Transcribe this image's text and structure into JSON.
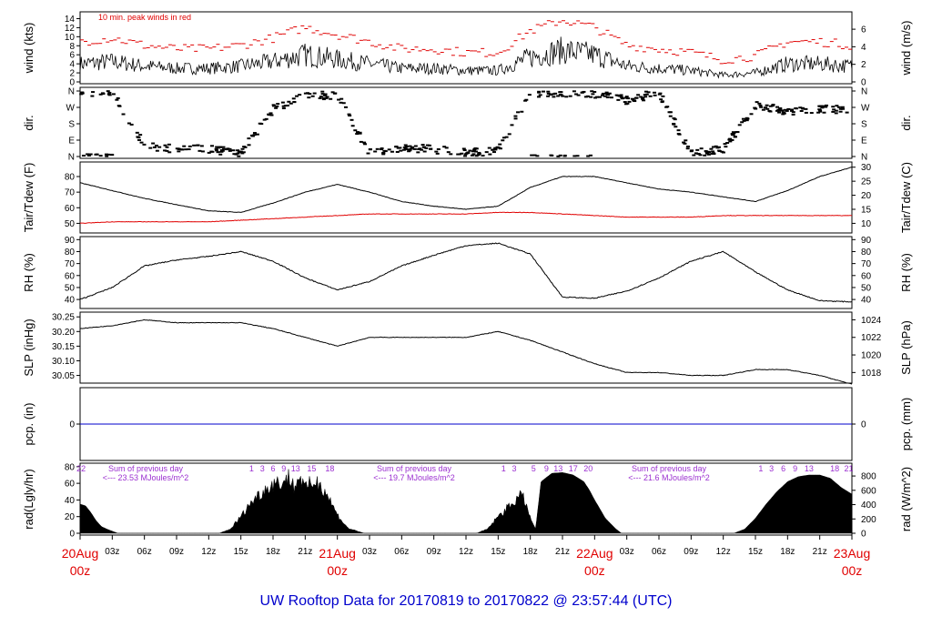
{
  "title": "UW Rooftop Data for 20170819  to  20170822 @ 23:57:44  (UTC)",
  "colors": {
    "trace": "#000000",
    "peak": "#e00000",
    "dew": "#e00000",
    "pcp": "#0000cc",
    "note": "#9b30d0",
    "day": "#e00000",
    "title": "#0000cc"
  },
  "x_axis": {
    "hour_ticks": [
      "03z",
      "06z",
      "09z",
      "12z",
      "15z",
      "18z",
      "21z",
      "03z",
      "06z",
      "09z",
      "12z",
      "15z",
      "18z",
      "21z",
      "03z",
      "06z",
      "09z",
      "12z",
      "15z",
      "18z",
      "21z"
    ],
    "day_labels": [
      {
        "date": "20Aug",
        "hour": "00z"
      },
      {
        "date": "21Aug",
        "hour": "00z"
      },
      {
        "date": "22Aug",
        "hour": "00z"
      },
      {
        "date": "23Aug",
        "hour": "00z"
      }
    ]
  },
  "chart_data": [
    {
      "id": "wind",
      "type": "line",
      "ylabel_left": "wind (kts)",
      "ylabel_right": "wind (m/s)",
      "yticks_left": [
        "0",
        "2",
        "4",
        "6",
        "8",
        "10",
        "12",
        "14"
      ],
      "ylim_left": [
        0,
        14.5
      ],
      "yticks_right": [
        "0",
        "2",
        "4",
        "6"
      ],
      "yticks_right_vals": [
        0,
        3.89,
        7.78,
        11.66
      ],
      "annotation": "10 min. peak winds in red",
      "series": [
        {
          "hours": [
            0,
            3,
            6,
            9,
            12,
            15,
            18,
            21,
            24,
            27,
            30,
            33,
            36,
            39,
            42,
            45,
            48,
            51,
            54,
            57,
            60,
            63,
            66,
            69,
            72
          ],
          "values": [
            4,
            4.5,
            3.5,
            3,
            3,
            3.5,
            4.5,
            6,
            5,
            4,
            3,
            3,
            2.5,
            2.5,
            5.5,
            7,
            6,
            3.5,
            3,
            2.5,
            1.5,
            2,
            4,
            4,
            3.5
          ]
        }
      ]
    },
    {
      "id": "dir",
      "type": "scatter",
      "ylabel_left": "dir.",
      "ylabel_right": "dir.",
      "yticks_left": [
        "N",
        "E",
        "S",
        "W",
        "N"
      ],
      "ylim_left": [
        0,
        360
      ],
      "series": [
        {
          "hours": [
            0,
            3,
            6,
            9,
            12,
            15,
            18,
            21,
            24,
            27,
            30,
            33,
            36,
            39,
            42,
            45,
            48,
            51,
            54,
            57,
            60,
            63,
            66,
            69,
            72
          ],
          "values": [
            350,
            355,
            60,
            40,
            40,
            20,
            260,
            330,
            340,
            20,
            50,
            40,
            20,
            30,
            350,
            350,
            345,
            310,
            350,
            20,
            40,
            280,
            250,
            260,
            255
          ]
        }
      ]
    },
    {
      "id": "temp",
      "type": "line",
      "ylabel_left": "Tair/Tdew (F)",
      "ylabel_right": "Tair/Tdew (C)",
      "yticks_left": [
        "50",
        "60",
        "70",
        "80"
      ],
      "ylim_left": [
        45,
        87
      ],
      "yticks_right": [
        "10",
        "15",
        "20",
        "25",
        "30"
      ],
      "yticks_right_vals": [
        50,
        59,
        68,
        77,
        86
      ],
      "series": [
        {
          "name": "Tair",
          "hours": [
            0,
            3,
            6,
            9,
            12,
            15,
            18,
            21,
            24,
            27,
            30,
            33,
            36,
            39,
            42,
            45,
            48,
            51,
            54,
            57,
            60,
            63,
            66,
            69,
            72
          ],
          "values": [
            76,
            71,
            66,
            62,
            58,
            57,
            63,
            70,
            75,
            70,
            64,
            61,
            59,
            61,
            73,
            80,
            80,
            76,
            72,
            70,
            67,
            64,
            71,
            80,
            86
          ]
        },
        {
          "name": "Tdew",
          "hours": [
            0,
            3,
            6,
            9,
            12,
            15,
            18,
            21,
            24,
            27,
            30,
            33,
            36,
            39,
            42,
            45,
            48,
            51,
            54,
            57,
            60,
            63,
            66,
            69,
            72
          ],
          "values": [
            50,
            51,
            51,
            51,
            51,
            52,
            53,
            54,
            55,
            56,
            56,
            56,
            56,
            57,
            57,
            56,
            55,
            54,
            54,
            54,
            55,
            55,
            55,
            55,
            55
          ]
        }
      ]
    },
    {
      "id": "rh",
      "type": "line",
      "ylabel_left": "RH (%)",
      "ylabel_right": "RH (%)",
      "yticks_left": [
        "40",
        "50",
        "60",
        "70",
        "80",
        "90"
      ],
      "ylim_left": [
        34,
        91
      ],
      "yticks_right": [
        "40",
        "50",
        "60",
        "70",
        "80",
        "90"
      ],
      "series": [
        {
          "hours": [
            0,
            3,
            6,
            9,
            12,
            15,
            18,
            21,
            24,
            27,
            30,
            33,
            36,
            39,
            42,
            45,
            48,
            51,
            54,
            57,
            60,
            63,
            66,
            69,
            72
          ],
          "values": [
            40,
            50,
            68,
            73,
            76,
            80,
            72,
            58,
            48,
            55,
            68,
            77,
            85,
            87,
            78,
            42,
            41,
            47,
            58,
            72,
            80,
            63,
            48,
            39,
            38
          ]
        }
      ]
    },
    {
      "id": "slp",
      "type": "line",
      "ylabel_left": "SLP (inHg)",
      "ylabel_right": "SLP (hPa)",
      "yticks_left": [
        "30.05",
        "30.10",
        "30.15",
        "30.20",
        "30.25"
      ],
      "ylim_left": [
        30.03,
        30.26
      ],
      "yticks_right": [
        "1018",
        "1020",
        "1022",
        "1024"
      ],
      "yticks_right_vals": [
        30.06,
        30.12,
        30.18,
        30.24
      ],
      "series": [
        {
          "hours": [
            0,
            3,
            6,
            9,
            12,
            15,
            18,
            21,
            24,
            27,
            30,
            33,
            36,
            39,
            42,
            45,
            48,
            51,
            54,
            57,
            60,
            63,
            66,
            69,
            72
          ],
          "values": [
            30.21,
            30.22,
            30.24,
            30.23,
            30.23,
            30.23,
            30.21,
            30.18,
            30.15,
            30.18,
            30.18,
            30.18,
            30.18,
            30.2,
            30.17,
            30.13,
            30.09,
            30.06,
            30.06,
            30.05,
            30.05,
            30.07,
            30.07,
            30.05,
            30.02
          ]
        }
      ]
    },
    {
      "id": "pcp",
      "type": "line",
      "ylabel_left": "pcp. (in)",
      "ylabel_right": "pcp. (mm)",
      "yticks_left": [
        "0"
      ],
      "ylim_left": [
        -0.04,
        0.04
      ],
      "yticks_right": [
        "0"
      ],
      "series": [
        {
          "hours": [
            0,
            72
          ],
          "values": [
            0,
            0
          ]
        }
      ]
    },
    {
      "id": "rad",
      "type": "area",
      "ylabel_left": "rad(Lgly/hr)",
      "ylabel_right": "rad (W/m^2)",
      "yticks_left": [
        "0",
        "20",
        "40",
        "60",
        "80"
      ],
      "ylim_left": [
        0,
        82
      ],
      "yticks_right": [
        "0",
        "200",
        "400",
        "600",
        "800"
      ],
      "yticks_right_vals": [
        0,
        17.2,
        34.4,
        51.6,
        68.8
      ],
      "top_hour_labels": [
        {
          "hour": 0.1,
          "text": "22"
        },
        {
          "hour": 16,
          "text": "1"
        },
        {
          "hour": 17,
          "text": "3"
        },
        {
          "hour": 18,
          "text": "6"
        },
        {
          "hour": 19,
          "text": "9"
        },
        {
          "hour": 20.1,
          "text": "13"
        },
        {
          "hour": 21.6,
          "text": "15"
        },
        {
          "hour": 23.3,
          "text": "18"
        },
        {
          "hour": 39.5,
          "text": "1"
        },
        {
          "hour": 40.5,
          "text": "3"
        },
        {
          "hour": 42.3,
          "text": "5"
        },
        {
          "hour": 43.5,
          "text": "9"
        },
        {
          "hour": 44.6,
          "text": "13"
        },
        {
          "hour": 46,
          "text": "17"
        },
        {
          "hour": 47.4,
          "text": "20"
        },
        {
          "hour": 63.5,
          "text": "1"
        },
        {
          "hour": 64.5,
          "text": "3"
        },
        {
          "hour": 65.6,
          "text": "6"
        },
        {
          "hour": 66.7,
          "text": "9"
        },
        {
          "hour": 68,
          "text": "13"
        },
        {
          "hour": 70.4,
          "text": "18"
        },
        {
          "hour": 71.7,
          "text": "21"
        }
      ],
      "day_sums": [
        {
          "label": "Sum of previous day",
          "value": "<--- 23.53 MJoules/m^2"
        },
        {
          "label": "Sum of previous day",
          "value": "<--- 19.7 MJoules/m^2"
        },
        {
          "label": "Sum of previous day",
          "value": "<--- 21.6 MJoules/m^2"
        }
      ],
      "series": [
        {
          "hours": [
            0,
            0.5,
            1,
            1.5,
            2,
            2.5,
            3.5,
            13,
            14,
            15,
            16,
            17,
            18,
            19,
            19.5,
            20,
            20.5,
            21,
            21.5,
            22,
            22.5,
            23,
            24,
            25,
            26,
            26.5,
            37,
            38,
            39,
            40,
            41,
            41.5,
            42,
            42.5,
            43,
            44,
            45,
            46,
            47,
            47.5,
            48,
            49,
            50,
            50.5,
            61,
            62,
            63,
            64,
            65,
            66,
            67,
            68,
            69,
            70,
            71,
            72
          ],
          "values": [
            35,
            33,
            25,
            15,
            8,
            5,
            0,
            0,
            5,
            20,
            38,
            50,
            60,
            62,
            68,
            55,
            70,
            52,
            60,
            62,
            58,
            48,
            22,
            6,
            2,
            0,
            0,
            5,
            20,
            32,
            45,
            40,
            18,
            5,
            62,
            72,
            73,
            70,
            62,
            52,
            40,
            18,
            5,
            0,
            0,
            5,
            18,
            35,
            50,
            62,
            68,
            70,
            70,
            66,
            55,
            47
          ]
        }
      ]
    }
  ]
}
